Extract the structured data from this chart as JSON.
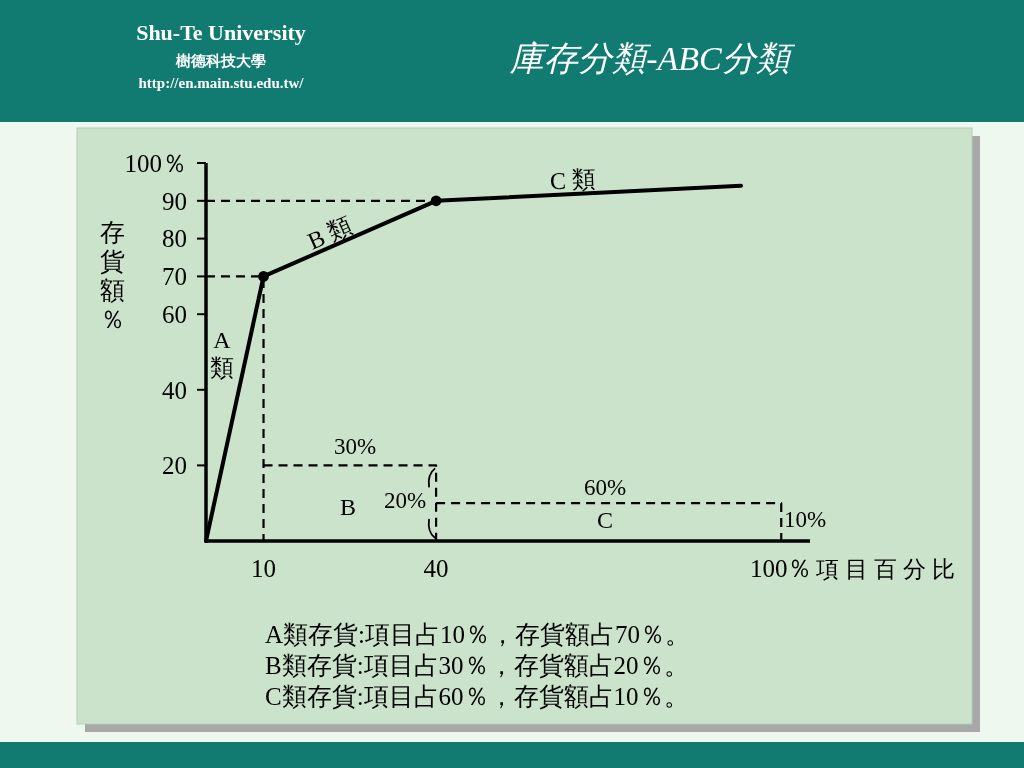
{
  "chart_data": {
    "type": "line",
    "title": "庫存分類-ABC分類",
    "xlabel": "項目百分比",
    "ylabel": "存貨額％",
    "xlim": [
      0,
      105
    ],
    "ylim": [
      0,
      100
    ],
    "xticks": [
      10,
      40,
      {
        "value": 100,
        "label": "100％"
      }
    ],
    "yticks": [
      20,
      40,
      60,
      70,
      80,
      90,
      {
        "value": 100,
        "label": "100％"
      }
    ],
    "series": [
      {
        "color": "#000000",
        "line_style": "solid",
        "x": [
          0,
          10,
          40,
          93
        ],
        "values": [
          0,
          70,
          90,
          94
        ]
      },
      {
        "type": "scatter",
        "color": "#000000",
        "marker": "circle",
        "x": [
          10,
          40
        ],
        "values": [
          70,
          90
        ]
      },
      {
        "color": "#000000",
        "line_style": "dashed",
        "x": [
          0,
          10,
          10
        ],
        "values": [
          70,
          70,
          0
        ]
      },
      {
        "color": "#000000",
        "line_style": "dashed",
        "x": [
          0,
          40
        ],
        "values": [
          90,
          90
        ]
      },
      {
        "color": "#000000",
        "line_style": "dashed",
        "x": [
          10,
          40,
          40
        ],
        "values": [
          20,
          20,
          0
        ]
      },
      {
        "color": "#000000",
        "line_style": "dashed",
        "x": [
          40,
          100,
          100
        ],
        "values": [
          10,
          10,
          0
        ]
      }
    ],
    "annotations": [
      "Shu-Te University",
      "樹德科技大學",
      "http://en.main.stu.edu.tw/",
      "A\n類",
      "B 類",
      "C 類",
      "30%",
      "B",
      "20%",
      "60%",
      "C",
      "10%",
      "A類存貨:項目占10％，存貨額占70％。",
      "B類存貨:項目占30％，存貨額占20％。",
      "C類存貨:項目占60％，存貨額占10％。"
    ]
  }
}
